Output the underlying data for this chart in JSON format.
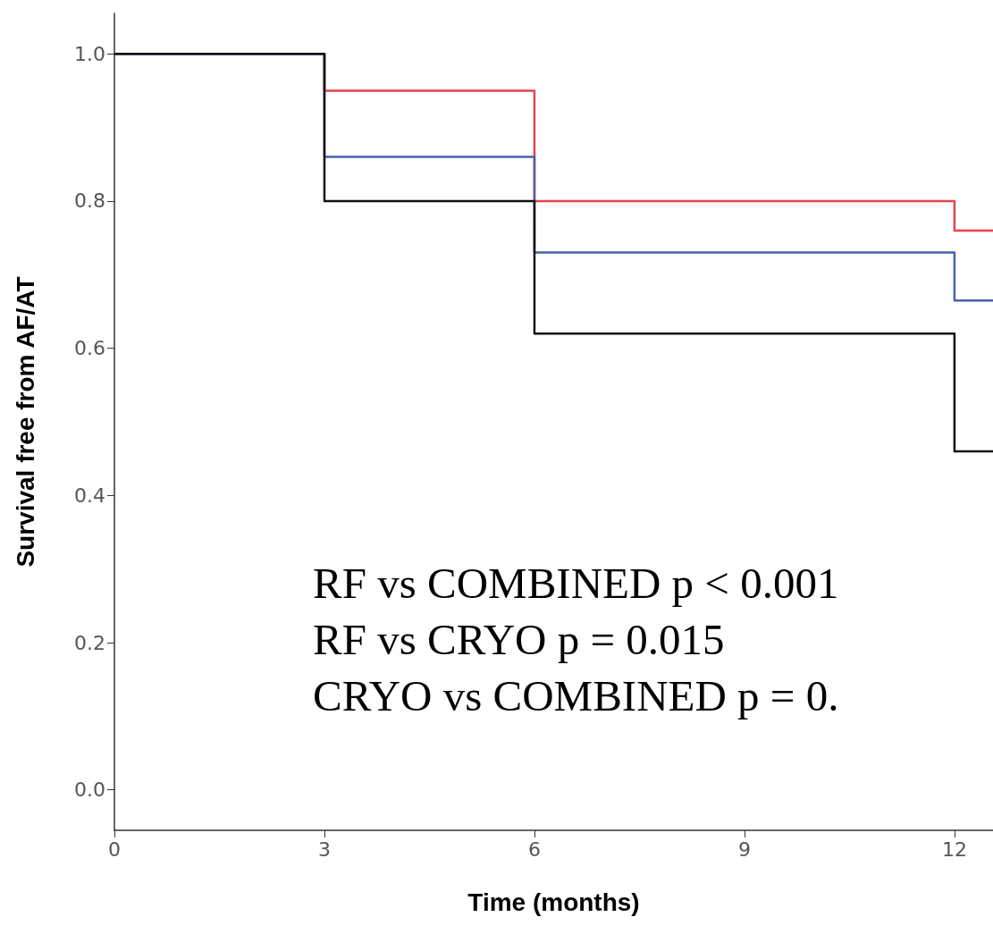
{
  "chart_data": {
    "type": "step",
    "xlabel": "Time (months)",
    "ylabel": "Survival free from AF/AT",
    "x": [
      0,
      3,
      6,
      12,
      12.55
    ],
    "series": [
      {
        "color": "#e8414e",
        "values": [
          1.0,
          0.95,
          0.8,
          0.76,
          0.76
        ]
      },
      {
        "color": "#4a5fb0",
        "values": [
          1.0,
          0.86,
          0.73,
          0.665,
          0.665
        ]
      },
      {
        "color": "#111111",
        "values": [
          1.0,
          0.8,
          0.62,
          0.46,
          0.46
        ]
      }
    ],
    "xlim": [
      0,
      12.55
    ],
    "xticks": [
      0,
      3,
      6,
      9,
      12
    ],
    "ylim": [
      -0.055,
      1.055
    ],
    "yticks": [
      {
        "value": 0,
        "label": "0.0"
      },
      {
        "value": 0.2,
        "label": "0.2"
      },
      {
        "value": 0.4,
        "label": "0.4"
      },
      {
        "value": 0.6,
        "label": "0.6"
      },
      {
        "value": 0.8,
        "label": "0.8"
      },
      {
        "value": 1.0,
        "label": "1.0"
      }
    ],
    "grid": false,
    "marker": "none",
    "line_style": "solid",
    "annotations": [
      "RF vs COMBINED p < 0.001",
      "RF vs CRYO p = 0.015",
      "CRYO vs COMBINED p = 0."
    ]
  }
}
